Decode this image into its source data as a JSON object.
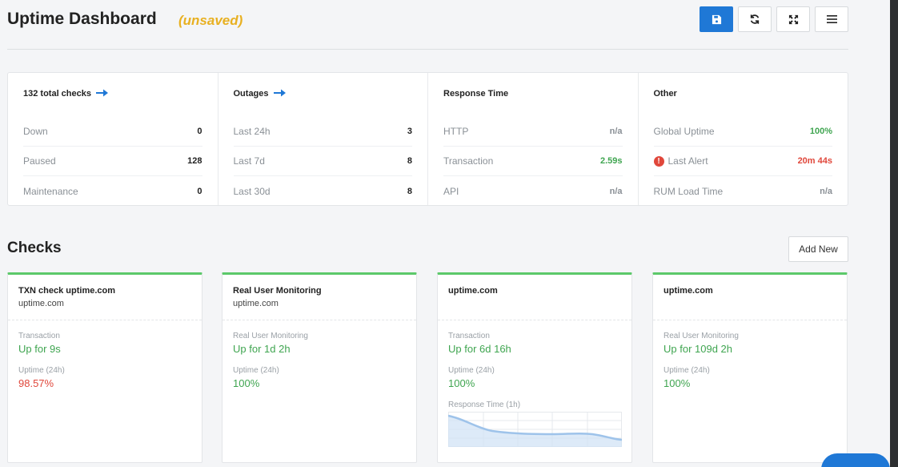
{
  "header": {
    "title": "Uptime Dashboard",
    "status": "(unsaved)",
    "tools": [
      {
        "icon": "save-icon"
      },
      {
        "icon": "refresh-icon"
      },
      {
        "icon": "fullscreen-icon"
      },
      {
        "icon": "menu-icon"
      }
    ]
  },
  "stats": {
    "checks": {
      "title": "132 total checks",
      "rows": [
        {
          "label": "Down",
          "value": "0"
        },
        {
          "label": "Paused",
          "value": "128"
        },
        {
          "label": "Maintenance",
          "value": "0"
        }
      ]
    },
    "outages": {
      "title": "Outages",
      "rows": [
        {
          "label": "Last 24h",
          "value": "3"
        },
        {
          "label": "Last 7d",
          "value": "8"
        },
        {
          "label": "Last 30d",
          "value": "8"
        }
      ]
    },
    "response": {
      "title": "Response Time",
      "rows": [
        {
          "label": "HTTP",
          "value": "n/a"
        },
        {
          "label": "Transaction",
          "value": "2.59s"
        },
        {
          "label": "API",
          "value": "n/a"
        }
      ]
    },
    "other": {
      "title": "Other",
      "rows": [
        {
          "label": "Global Uptime",
          "value": "100%"
        },
        {
          "label": "Last Alert",
          "value": "20m 44s"
        },
        {
          "label": "RUM Load Time",
          "value": "n/a"
        }
      ]
    }
  },
  "checks_section": {
    "title": "Checks",
    "add_new_label": "Add New"
  },
  "cards": [
    {
      "name": "TXN check uptime.com",
      "host": "uptime.com",
      "type_label": "Transaction",
      "status": "Up for 9s",
      "uptime_label": "Uptime (24h)",
      "uptime": "98.57%"
    },
    {
      "name": "Real User Monitoring",
      "host": "uptime.com",
      "type_label": "Real User Monitoring",
      "status": "Up for 1d 2h",
      "uptime_label": "Uptime (24h)",
      "uptime": "100%"
    },
    {
      "name": "uptime.com",
      "host": "",
      "type_label": "Transaction",
      "status": "Up for 6d 16h",
      "uptime_label": "Uptime (24h)",
      "uptime": "100%",
      "spark_label": "Response Time (1h)"
    },
    {
      "name": "uptime.com",
      "host": "",
      "type_label": "Real User Monitoring",
      "status": "Up for 109d 2h",
      "uptime_label": "Uptime (24h)",
      "uptime": "100%"
    }
  ],
  "colors": {
    "accent": "#1f78d6",
    "up": "#3fa550",
    "down": "#e0473b",
    "unsaved": "#e8b021"
  }
}
